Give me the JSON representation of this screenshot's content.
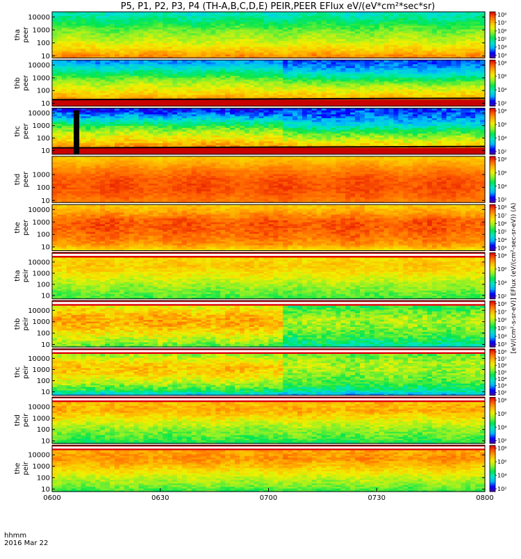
{
  "title": "P5, P1, P2, P3, P4 (TH-A,B,C,D,E) PEIR,PEER EFlux eV/(eV*cm²*sec*sr)",
  "colorbar_label": "[eV/(cm²-s-sr-eV)] EFlux (eV/(cm²-sec-sr-eV)) (A)",
  "footer": {
    "units_label": "hhmm",
    "date_label": "2016 Mar 22"
  },
  "colors": {
    "spectrogram_scale": [
      "#ffffff",
      "#5000a0",
      "#0000ff",
      "#00b4ff",
      "#00e6c8",
      "#00e650",
      "#8cf028",
      "#f0f000",
      "#ffb400",
      "#ff6400",
      "#e10000"
    ],
    "fill_band": "#e10000",
    "frame": "#000000"
  },
  "chart_data": {
    "type": "heatmap",
    "x_axis": {
      "ticks": [
        "0600",
        "0630",
        "0700",
        "0730",
        "0800"
      ],
      "range": [
        "0600",
        "0800"
      ]
    },
    "y_scale": "log",
    "panels": [
      {
        "probe": "tha",
        "species": "peer",
        "line1": "tha",
        "line2": "peer",
        "yticks": [
          "10000",
          "1000",
          "100",
          "10"
        ],
        "ylim": [
          7,
          25000
        ],
        "cbticks": [
          "10⁸",
          "10⁷",
          "10⁶",
          "10⁵",
          "10⁴",
          "10³"
        ],
        "cblim": [
          3,
          8.5
        ],
        "bottom_band": false,
        "blank_band": false,
        "black_stripe": false,
        "profile": [
          [
            0.4,
            6.3
          ],
          [
            0.7,
            7.3
          ],
          [
            1.0,
            7.6
          ],
          [
            1.5,
            7.0
          ],
          [
            2.2,
            6.4
          ],
          [
            3.0,
            5.9
          ],
          [
            4.2,
            4.9
          ]
        ],
        "change_frac": 0.0,
        "late_profile": null,
        "noise": 0.25
      },
      {
        "probe": "thb",
        "species": "peer",
        "line1": "thb",
        "line2": "peer",
        "yticks": [
          "10000",
          "1000",
          "100",
          "10"
        ],
        "ylim": [
          6,
          25000
        ],
        "cbticks": [
          "10⁸",
          "10⁶",
          "10⁴",
          "10²"
        ],
        "cblim": [
          1.5,
          8.5
        ],
        "bottom_band": true,
        "blank_band": false,
        "black_stripe": false,
        "profile": [
          [
            0.8,
            7.4
          ],
          [
            1.2,
            7.4
          ],
          [
            1.6,
            6.8
          ],
          [
            2.2,
            6.1
          ],
          [
            2.8,
            5.4
          ],
          [
            3.4,
            4.4
          ],
          [
            4.2,
            3.0
          ]
        ],
        "change_frac": 0.53,
        "late_profile": [
          [
            0.8,
            7.4
          ],
          [
            1.3,
            7.0
          ],
          [
            1.8,
            6.4
          ],
          [
            2.4,
            5.6
          ],
          [
            3.0,
            4.4
          ],
          [
            3.6,
            3.2
          ],
          [
            4.2,
            2.6
          ]
        ],
        "noise": 0.35
      },
      {
        "probe": "thc",
        "species": "peer",
        "line1": "thc",
        "line2": "peer",
        "yticks": [
          "10000",
          "1000",
          "100",
          "10"
        ],
        "ylim": [
          5,
          25000
        ],
        "cbticks": [
          "10⁸",
          "10⁶",
          "10⁴",
          "10²"
        ],
        "cblim": [
          1.5,
          8.5
        ],
        "bottom_band": true,
        "blank_band": false,
        "black_stripe": true,
        "profile": [
          [
            0.8,
            7.5
          ],
          [
            1.3,
            7.3
          ],
          [
            1.8,
            6.6
          ],
          [
            2.4,
            5.8
          ],
          [
            3.0,
            4.8
          ],
          [
            3.6,
            3.4
          ],
          [
            4.2,
            2.3
          ]
        ],
        "change_frac": 0.53,
        "late_profile": [
          [
            0.8,
            7.3
          ],
          [
            1.3,
            6.8
          ],
          [
            1.8,
            6.0
          ],
          [
            2.4,
            5.0
          ],
          [
            3.0,
            3.8
          ],
          [
            3.6,
            2.9
          ],
          [
            4.2,
            2.5
          ]
        ],
        "noise": 0.45
      },
      {
        "probe": "thd",
        "species": "peer",
        "line1": "thd",
        "line2": "peer",
        "yticks": [
          "1000",
          "100",
          "10"
        ],
        "ylim": [
          7,
          25000
        ],
        "cbticks": [
          "10⁸",
          "10⁶",
          "10⁴",
          "10²"
        ],
        "cblim": [
          1.5,
          8.5
        ],
        "bottom_band": false,
        "blank_band": false,
        "black_stripe": false,
        "profile": [
          [
            0.8,
            7.4
          ],
          [
            1.3,
            7.7
          ],
          [
            2.0,
            7.9
          ],
          [
            2.7,
            7.8
          ],
          [
            3.3,
            7.5
          ],
          [
            3.8,
            7.1
          ],
          [
            4.4,
            6.6
          ]
        ],
        "change_frac": 0.0,
        "late_profile": null,
        "noise": 0.2
      },
      {
        "probe": "the",
        "species": "peer",
        "line1": "the",
        "line2": "peer",
        "yticks": [
          "10000",
          "1000",
          "100",
          "10"
        ],
        "ylim": [
          5,
          25000
        ],
        "cbticks": [
          "10⁸",
          "10⁷",
          "10⁶",
          "10⁵",
          "10⁴",
          "10³"
        ],
        "cblim": [
          2.5,
          8.5
        ],
        "bottom_band": false,
        "blank_band": false,
        "black_stripe": false,
        "profile": [
          [
            0.7,
            6.6
          ],
          [
            1.2,
            7.4
          ],
          [
            1.8,
            7.7
          ],
          [
            2.5,
            7.9
          ],
          [
            3.1,
            7.9
          ],
          [
            3.6,
            7.5
          ],
          [
            4.2,
            7.0
          ]
        ],
        "change_frac": 0.0,
        "late_profile": null,
        "noise": 0.25
      },
      {
        "probe": "tha",
        "species": "peir",
        "line1": "tha",
        "line2": "peir",
        "yticks": [
          "10000",
          "1000",
          "100",
          "10"
        ],
        "ylim": [
          5,
          25000
        ],
        "cbticks": [
          "10⁸",
          "10⁶",
          "10⁴",
          "10²"
        ],
        "cblim": [
          1.5,
          8.5
        ],
        "bottom_band": false,
        "blank_band": true,
        "black_stripe": false,
        "profile": [
          [
            0.7,
            4.9
          ],
          [
            1.3,
            5.2
          ],
          [
            2.0,
            5.6
          ],
          [
            2.7,
            6.1
          ],
          [
            3.3,
            6.5
          ],
          [
            3.8,
            6.7
          ],
          [
            4.3,
            6.4
          ]
        ],
        "change_frac": 0.0,
        "late_profile": null,
        "noise": 0.35
      },
      {
        "probe": "thb",
        "species": "peir",
        "line1": "thb",
        "line2": "peir",
        "yticks": [
          "10000",
          "1000",
          "100",
          "10"
        ],
        "ylim": [
          6,
          25000
        ],
        "cbticks": [
          "10⁸",
          "10⁷",
          "10⁶",
          "10⁵",
          "10⁴",
          "10³"
        ],
        "cblim": [
          2.5,
          8.5
        ],
        "bottom_band": false,
        "blank_band": true,
        "black_stripe": false,
        "profile": [
          [
            0.8,
            5.5
          ],
          [
            1.3,
            6.0
          ],
          [
            2.0,
            6.6
          ],
          [
            2.6,
            7.1
          ],
          [
            3.2,
            7.3
          ],
          [
            3.7,
            7.0
          ],
          [
            4.3,
            6.5
          ]
        ],
        "change_frac": 0.53,
        "late_profile": [
          [
            0.8,
            4.6
          ],
          [
            1.3,
            5.0
          ],
          [
            2.0,
            5.6
          ],
          [
            2.6,
            5.9
          ],
          [
            3.2,
            6.0
          ],
          [
            3.7,
            5.8
          ],
          [
            4.3,
            5.3
          ]
        ],
        "noise": 0.45
      },
      {
        "probe": "thc",
        "species": "peir",
        "line1": "thc",
        "line2": "peir",
        "yticks": [
          "10000",
          "1000",
          "100",
          "10"
        ],
        "ylim": [
          5,
          25000
        ],
        "cbticks": [
          "10⁸",
          "10⁷",
          "10⁶",
          "10⁵",
          "10⁴",
          "10³",
          "10²"
        ],
        "cblim": [
          1.5,
          8.5
        ],
        "bottom_band": false,
        "blank_band": true,
        "black_stripe": false,
        "profile": [
          [
            0.7,
            3.2
          ],
          [
            1.2,
            4.8
          ],
          [
            1.9,
            5.8
          ],
          [
            2.6,
            6.5
          ],
          [
            3.2,
            6.8
          ],
          [
            3.7,
            6.4
          ],
          [
            4.3,
            5.6
          ]
        ],
        "change_frac": 0.53,
        "late_profile": [
          [
            0.7,
            3.0
          ],
          [
            1.2,
            4.2
          ],
          [
            1.9,
            5.0
          ],
          [
            2.6,
            5.4
          ],
          [
            3.2,
            5.6
          ],
          [
            3.7,
            5.6
          ],
          [
            4.3,
            5.2
          ]
        ],
        "noise": 0.5
      },
      {
        "probe": "thd",
        "species": "peir",
        "line1": "thd",
        "line2": "peir",
        "yticks": [
          "10000",
          "1000",
          "100",
          "10"
        ],
        "ylim": [
          6,
          25000
        ],
        "cbticks": [
          "10⁸",
          "10⁶",
          "10⁴",
          "10²"
        ],
        "cblim": [
          1.5,
          8.5
        ],
        "bottom_band": false,
        "blank_band": true,
        "black_stripe": false,
        "profile": [
          [
            0.8,
            4.6
          ],
          [
            1.3,
            5.0
          ],
          [
            2.0,
            5.4
          ],
          [
            2.6,
            5.9
          ],
          [
            3.2,
            6.5
          ],
          [
            3.7,
            7.0
          ],
          [
            4.3,
            6.8
          ]
        ],
        "change_frac": 0.0,
        "late_profile": null,
        "noise": 0.4
      },
      {
        "probe": "the",
        "species": "peir",
        "line1": "the",
        "line2": "peir",
        "yticks": [
          "10000",
          "1000",
          "100",
          "10"
        ],
        "ylim": [
          6,
          25000
        ],
        "cbticks": [
          "10⁸",
          "10⁶",
          "10⁴",
          "10²"
        ],
        "cblim": [
          1.5,
          8.5
        ],
        "bottom_band": false,
        "blank_band": true,
        "black_stripe": false,
        "profile": [
          [
            0.8,
            4.8
          ],
          [
            1.3,
            5.3
          ],
          [
            2.0,
            5.8
          ],
          [
            2.6,
            6.4
          ],
          [
            3.2,
            6.9
          ],
          [
            3.7,
            7.3
          ],
          [
            4.3,
            7.1
          ]
        ],
        "change_frac": 0.0,
        "late_profile": null,
        "noise": 0.35
      }
    ]
  }
}
